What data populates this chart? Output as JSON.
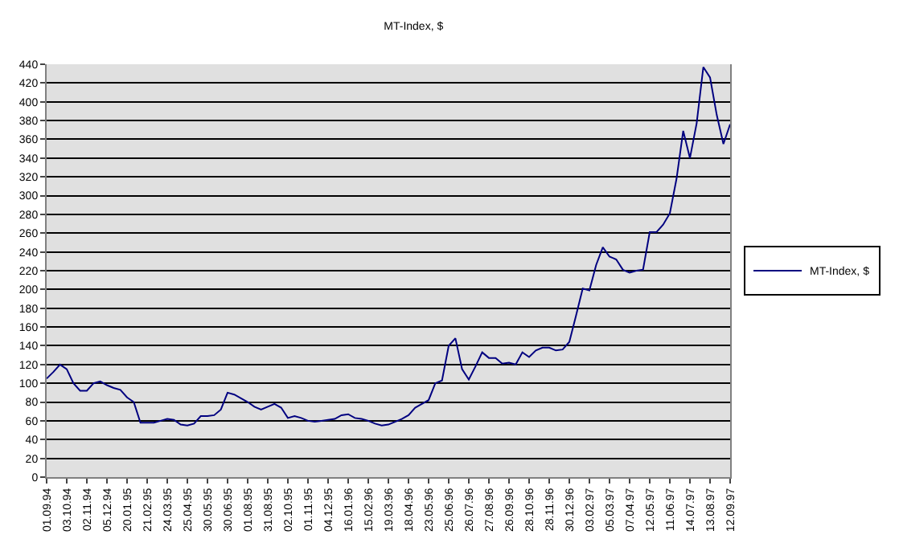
{
  "chart_data": {
    "type": "line",
    "title": "MT-Index, $",
    "categories": [
      "01.09.94",
      null,
      null,
      "03.10.94",
      null,
      null,
      "02.11.94",
      null,
      null,
      "05.12.94",
      null,
      null,
      "20.01.95",
      null,
      null,
      "21.02.95",
      null,
      null,
      "24.03.95",
      null,
      null,
      "25.04.95",
      null,
      null,
      "30.05.95",
      null,
      null,
      "30.06.95",
      null,
      null,
      "01.08.95",
      null,
      null,
      "31.08.95",
      null,
      null,
      "02.10.95",
      null,
      null,
      "01.11.95",
      null,
      null,
      "04.12.95",
      null,
      null,
      "16.01.96",
      null,
      null,
      "15.02.96",
      null,
      null,
      "19.03.96",
      null,
      null,
      "18.04.96",
      null,
      null,
      "23.05.96",
      null,
      null,
      "25.06.96",
      null,
      null,
      "26.07.96",
      null,
      null,
      "27.08.96",
      null,
      null,
      "26.09.96",
      null,
      null,
      "28.10.96",
      null,
      null,
      "28.11.96",
      null,
      null,
      "30.12.96",
      null,
      null,
      "03.02.97",
      null,
      null,
      "05.03.97",
      null,
      null,
      "07.04.97",
      null,
      null,
      "12.05.97",
      null,
      null,
      "11.06.97",
      null,
      null,
      "14.07.97",
      null,
      null,
      "13.08.97",
      null,
      null,
      "12.09.97"
    ],
    "series": [
      {
        "name": "MT-Index, $",
        "color": "#000080",
        "values": [
          105,
          112,
          120,
          115,
          100,
          92,
          92,
          100,
          102,
          98,
          95,
          93,
          85,
          80,
          58,
          58,
          58,
          60,
          62,
          61,
          56,
          55,
          57,
          65,
          65,
          66,
          72,
          90,
          88,
          84,
          80,
          75,
          72,
          75,
          78,
          74,
          63,
          65,
          63,
          60,
          59,
          60,
          61,
          62,
          66,
          67,
          63,
          62,
          60,
          57,
          55,
          56,
          59,
          62,
          66,
          74,
          78,
          82,
          100,
          103,
          140,
          148,
          115,
          104,
          118,
          133,
          127,
          127,
          121,
          122,
          120,
          133,
          128,
          135,
          138,
          138,
          135,
          136,
          144,
          172,
          201,
          199,
          226,
          245,
          235,
          232,
          221,
          218,
          220,
          221,
          261,
          261,
          269,
          281,
          318,
          369,
          340,
          377,
          437,
          426,
          386,
          355,
          376
        ]
      }
    ],
    "ylim": [
      0,
      440
    ],
    "yticks": [
      0,
      20,
      40,
      60,
      80,
      100,
      120,
      140,
      160,
      180,
      200,
      220,
      240,
      260,
      280,
      300,
      320,
      340,
      360,
      380,
      400,
      420,
      440
    ],
    "grid": "y",
    "legend": "right",
    "marker": "none",
    "line_style": "solid"
  }
}
